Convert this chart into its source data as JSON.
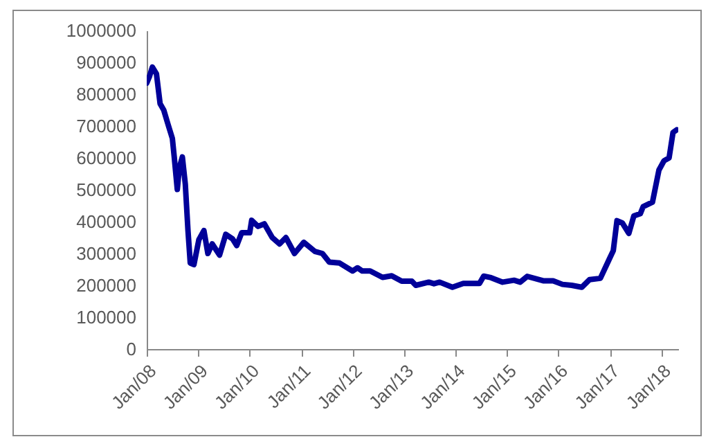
{
  "chart_data": {
    "type": "line",
    "x": [
      "2008-01-01",
      "2008-01-20",
      "2008-02-10",
      "2008-03-10",
      "2008-04-05",
      "2008-05-01",
      "2008-06-01",
      "2008-07-01",
      "2008-07-15",
      "2008-08-05",
      "2008-08-20",
      "2008-09-10",
      "2008-10-01",
      "2008-10-20",
      "2008-11-05",
      "2008-12-01",
      "2009-01-05",
      "2009-02-10",
      "2009-03-10",
      "2009-04-10",
      "2009-06-01",
      "2009-07-15",
      "2009-09-01",
      "2009-10-01",
      "2009-11-05",
      "2010-01-01",
      "2010-01-15",
      "2010-03-01",
      "2010-04-15",
      "2010-06-10",
      "2010-08-01",
      "2010-09-15",
      "2010-11-15",
      "2011-01-20",
      "2011-04-10",
      "2011-06-01",
      "2011-07-20",
      "2011-10-01",
      "2012-01-01",
      "2012-02-05",
      "2012-03-10",
      "2012-05-05",
      "2012-08-01",
      "2012-10-05",
      "2012-12-15",
      "2013-02-25",
      "2013-03-25",
      "2013-06-25",
      "2013-08-01",
      "2013-09-10",
      "2013-12-10",
      "2014-02-25",
      "2014-06-20",
      "2014-07-20",
      "2014-09-10",
      "2014-12-01",
      "2015-02-20",
      "2015-04-05",
      "2015-05-25",
      "2015-09-20",
      "2015-11-25",
      "2016-01-30",
      "2016-04-05",
      "2016-06-15",
      "2016-08-10",
      "2016-10-25",
      "2016-12-25",
      "2017-01-25",
      "2017-02-20",
      "2017-03-30",
      "2017-05-15",
      "2017-06-20",
      "2017-08-05",
      "2017-08-25",
      "2017-10-30",
      "2017-12-15",
      "2018-01-20",
      "2018-02-25",
      "2018-03-25",
      "2018-04-20"
    ],
    "series": [
      {
        "color": "#000099",
        "values": [
          835000,
          855000,
          885000,
          864000,
          770000,
          750000,
          704000,
          661000,
          600000,
          501000,
          570000,
          603000,
          517000,
          371000,
          270000,
          265000,
          343000,
          372000,
          300000,
          330000,
          295000,
          360000,
          346000,
          325000,
          365000,
          365000,
          404000,
          385000,
          393000,
          350000,
          330000,
          350000,
          300000,
          335000,
          306000,
          300000,
          273000,
          270000,
          245000,
          255000,
          245000,
          245000,
          225000,
          230000,
          213000,
          213000,
          200000,
          210000,
          205000,
          210000,
          194000,
          206000,
          206000,
          229000,
          224000,
          210000,
          216000,
          210000,
          228000,
          214000,
          214000,
          203000,
          200000,
          194000,
          218000,
          222000,
          280000,
          309000,
          403000,
          396000,
          363000,
          418000,
          425000,
          447000,
          461000,
          562000,
          591000,
          600000,
          680000,
          688000
        ]
      }
    ],
    "xlim": [
      "2008-01-01",
      "2018-05-01"
    ],
    "xticks": [
      {
        "value": "2008-01-01",
        "label": "Jan/08"
      },
      {
        "value": "2009-01-01",
        "label": "Jan/09"
      },
      {
        "value": "2010-01-01",
        "label": "Jan/10"
      },
      {
        "value": "2011-01-01",
        "label": "Jan/11"
      },
      {
        "value": "2012-01-01",
        "label": "Jan/12"
      },
      {
        "value": "2013-01-01",
        "label": "Jan/13"
      },
      {
        "value": "2014-01-01",
        "label": "Jan/14"
      },
      {
        "value": "2015-01-01",
        "label": "Jan/15"
      },
      {
        "value": "2016-01-01",
        "label": "Jan/16"
      },
      {
        "value": "2017-01-01",
        "label": "Jan/17"
      },
      {
        "value": "2018-01-01",
        "label": "Jan/18"
      }
    ],
    "ylim": [
      0,
      1000000
    ],
    "yticks": [
      0,
      100000,
      200000,
      300000,
      400000,
      500000,
      600000,
      700000,
      800000,
      900000,
      1000000
    ],
    "grid": false,
    "marker": "none",
    "line_style": "solid"
  }
}
